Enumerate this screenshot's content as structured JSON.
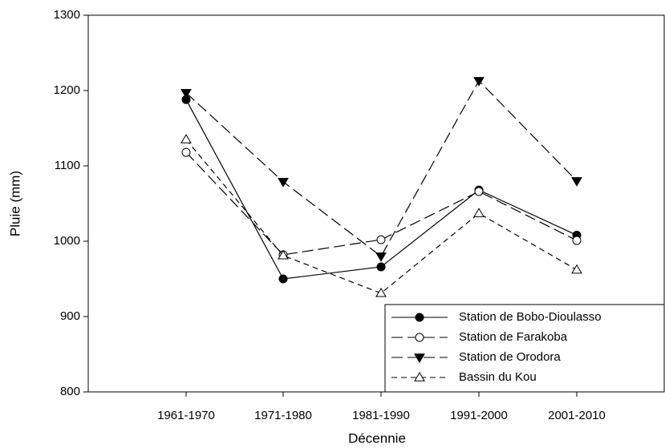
{
  "chart_data": {
    "type": "line",
    "categories": [
      "1961-1970",
      "1971-1980",
      "1981-1990",
      "1991-2000",
      "2001-2010"
    ],
    "series": [
      {
        "name": "Station de Bobo-Dioulasso",
        "color": "#000000",
        "marker": "circle-filled",
        "dash": "solid",
        "values": [
          1188,
          950,
          966,
          1068,
          1008
        ]
      },
      {
        "name": "Station de Farakoba",
        "color": "#000000",
        "marker": "circle-open",
        "dash": "long",
        "values": [
          1118,
          982,
          1002,
          1066,
          1001
        ]
      },
      {
        "name": "Station de Orodora",
        "color": "#000000",
        "marker": "triangle-down-filled",
        "dash": "long",
        "values": [
          1197,
          1079,
          980,
          1213,
          1080
        ]
      },
      {
        "name": "Bassin du Kou",
        "color": "#000000",
        "marker": "triangle-up-open",
        "dash": "short",
        "values": [
          1135,
          981,
          931,
          1037,
          962
        ]
      }
    ],
    "xlabel": "Décennie",
    "ylabel": "Pluie (mm)",
    "ylim": [
      800,
      1300
    ],
    "yticks": [
      800,
      900,
      1000,
      1100,
      1200,
      1300
    ],
    "grid": false,
    "legend": "lower right"
  }
}
